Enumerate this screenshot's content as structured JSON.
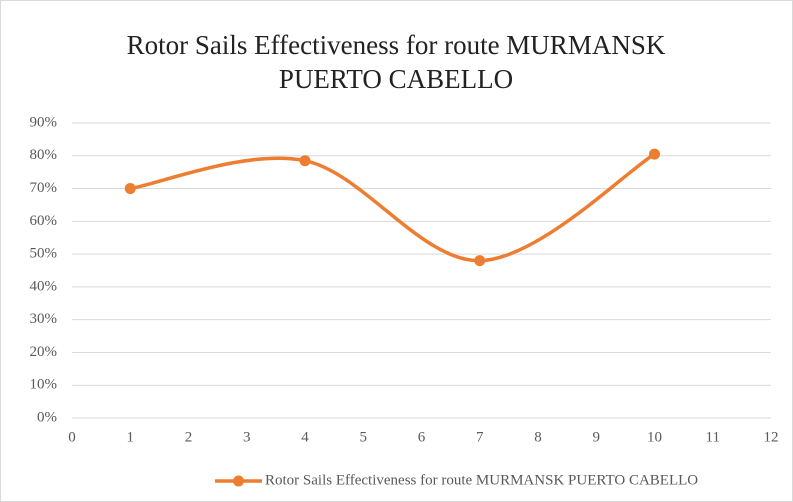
{
  "chart_data": {
    "type": "scatter-smooth",
    "title": "Rotor Sails Effectiveness for route MURMANSK PUERTO CABELLO",
    "x": [
      1,
      4,
      7,
      10
    ],
    "series": [
      {
        "name": "Rotor Sails Effectiveness for route MURMANSK PUERTO CABELLO",
        "color": "#ed7d31",
        "values": [
          70,
          78.5,
          48,
          80.5
        ]
      }
    ],
    "xlim": [
      0,
      12
    ],
    "xticks": [
      0,
      1,
      2,
      3,
      4,
      5,
      6,
      7,
      8,
      9,
      10,
      11,
      12
    ],
    "ylim": [
      0,
      90
    ],
    "yticks": [
      {
        "value": 0,
        "label": "0%"
      },
      {
        "value": 10,
        "label": "10%"
      },
      {
        "value": 20,
        "label": "20%"
      },
      {
        "value": 30,
        "label": "30%"
      },
      {
        "value": 40,
        "label": "40%"
      },
      {
        "value": 50,
        "label": "50%"
      },
      {
        "value": 60,
        "label": "60%"
      },
      {
        "value": 70,
        "label": "70%"
      },
      {
        "value": 80,
        "label": "80%"
      },
      {
        "value": 90,
        "label": "90%"
      }
    ],
    "grid": true,
    "legend": "bottom"
  }
}
